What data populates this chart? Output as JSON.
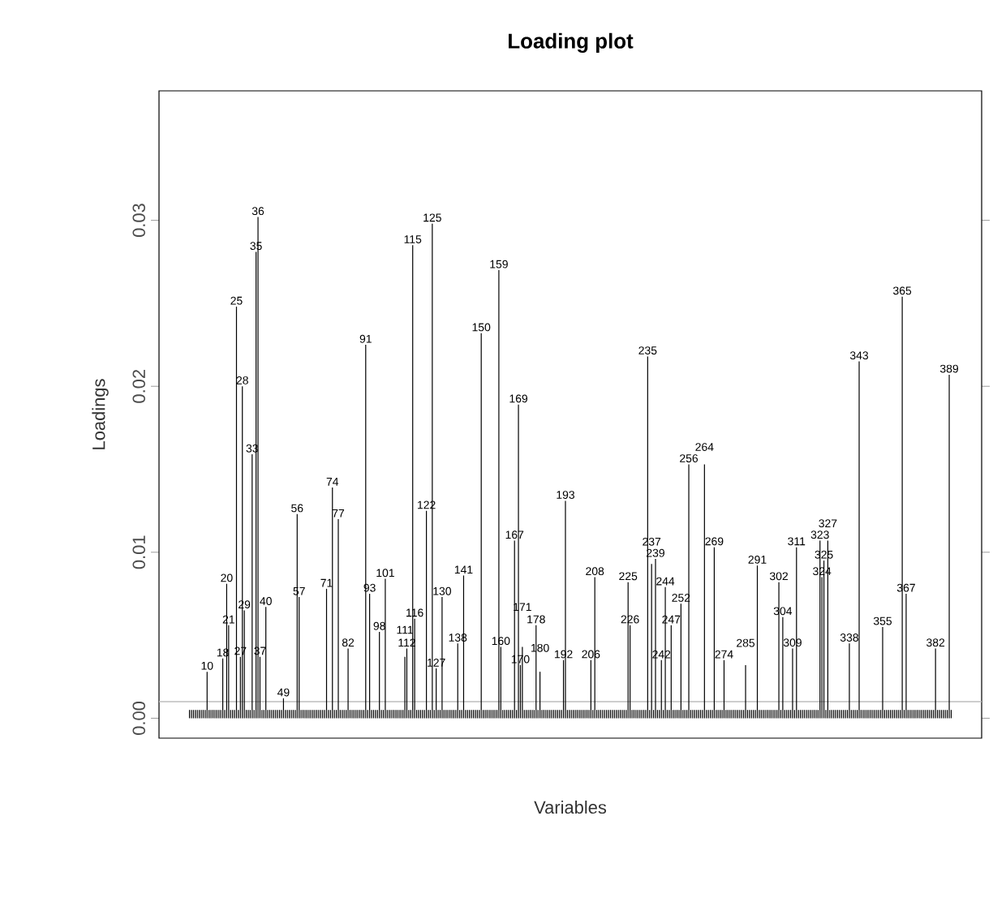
{
  "chart_data": {
    "type": "bar",
    "title": "Loading plot",
    "xlabel": "Variables",
    "ylabel": "Loadings",
    "ylim": [
      -0.0012,
      0.0378
    ],
    "yticks": [
      {
        "value": 0,
        "label": "0.00"
      },
      {
        "value": 0.01,
        "label": "0.01"
      },
      {
        "value": 0.02,
        "label": "0.02"
      },
      {
        "value": 0.03,
        "label": "0.03"
      }
    ],
    "tick_labels": "y",
    "categories": [
      null,
      null,
      null,
      null,
      null,
      null,
      null,
      null,
      null,
      "10",
      null,
      null,
      null,
      null,
      null,
      null,
      null,
      "18",
      null,
      "20",
      "21",
      null,
      null,
      null,
      "25",
      null,
      "27",
      "28",
      "29",
      null,
      null,
      null,
      "33",
      null,
      "35",
      "36",
      "37",
      null,
      null,
      "40",
      null,
      null,
      null,
      null,
      null,
      null,
      null,
      null,
      "49",
      null,
      null,
      null,
      null,
      null,
      null,
      "56",
      "57",
      null,
      null,
      null,
      null,
      null,
      null,
      null,
      null,
      null,
      null,
      null,
      null,
      null,
      "71",
      null,
      null,
      "74",
      null,
      null,
      "77",
      null,
      null,
      null,
      null,
      "82",
      null,
      null,
      null,
      null,
      null,
      null,
      null,
      null,
      "91",
      null,
      "93",
      null,
      null,
      null,
      null,
      "98",
      null,
      null,
      "101",
      null,
      null,
      null,
      null,
      null,
      null,
      null,
      null,
      null,
      "111",
      "112",
      null,
      null,
      "115",
      "116",
      null,
      null,
      null,
      null,
      null,
      "122",
      null,
      null,
      "125",
      null,
      "127",
      null,
      null,
      "130",
      null,
      null,
      null,
      null,
      null,
      null,
      null,
      "138",
      null,
      null,
      "141",
      null,
      null,
      null,
      null,
      null,
      null,
      null,
      null,
      "150",
      null,
      null,
      null,
      null,
      null,
      null,
      null,
      null,
      "159",
      "160",
      null,
      null,
      null,
      null,
      null,
      null,
      "167",
      null,
      "169",
      "170",
      "171",
      null,
      null,
      null,
      null,
      null,
      null,
      "178",
      null,
      "180",
      null,
      null,
      null,
      null,
      null,
      null,
      null,
      null,
      null,
      null,
      null,
      "192",
      "193",
      null,
      null,
      null,
      null,
      null,
      null,
      null,
      null,
      null,
      null,
      null,
      null,
      "206",
      null,
      "208",
      null,
      null,
      null,
      null,
      null,
      null,
      null,
      null,
      null,
      null,
      null,
      null,
      null,
      null,
      null,
      null,
      "225",
      "226",
      null,
      null,
      null,
      null,
      null,
      null,
      null,
      null,
      "235",
      null,
      "237",
      null,
      "239",
      null,
      null,
      "242",
      null,
      "244",
      null,
      null,
      "247",
      null,
      null,
      null,
      null,
      "252",
      null,
      null,
      null,
      "256",
      null,
      null,
      null,
      null,
      null,
      null,
      null,
      "264",
      null,
      null,
      null,
      null,
      "269",
      null,
      null,
      null,
      null,
      "274",
      null,
      null,
      null,
      null,
      null,
      null,
      null,
      null,
      null,
      null,
      "285",
      null,
      null,
      null,
      null,
      null,
      "291",
      null,
      null,
      null,
      null,
      null,
      null,
      null,
      null,
      null,
      null,
      "302",
      null,
      "304",
      null,
      null,
      null,
      null,
      "309",
      null,
      "311",
      null,
      null,
      null,
      null,
      null,
      null,
      null,
      null,
      null,
      null,
      null,
      "323",
      "324",
      "325",
      null,
      "327",
      null,
      null,
      null,
      null,
      null,
      null,
      null,
      null,
      null,
      null,
      "338",
      null,
      null,
      null,
      null,
      "343",
      null,
      null,
      null,
      null,
      null,
      null,
      null,
      null,
      null,
      null,
      null,
      "355",
      null,
      null,
      null,
      null,
      null,
      null,
      null,
      null,
      null,
      "365",
      null,
      "367",
      null,
      null,
      null,
      null,
      null,
      null,
      null,
      null,
      null,
      null,
      null,
      null,
      null,
      null,
      "382",
      null,
      null,
      null,
      null,
      null,
      null,
      "389",
      null
    ],
    "series": [
      {
        "color": "#000000",
        "values": [
          0.0005,
          0.0005,
          0.0005,
          0.0005,
          0.0005,
          0.0005,
          0.0005,
          0.0005,
          0.0005,
          0.0028,
          0.0005,
          0.0005,
          0.0005,
          0.0005,
          0.0005,
          0.0005,
          0.0005,
          0.0036,
          0.0005,
          0.0081,
          0.0056,
          0.0005,
          0.0005,
          0.0005,
          0.0248,
          0.0005,
          0.0037,
          0.02,
          0.0065,
          0.0005,
          0.0005,
          0.0005,
          0.0159,
          0.0005,
          0.0281,
          0.0302,
          0.0037,
          0.0005,
          0.0005,
          0.0067,
          0.0005,
          0.0005,
          0.0005,
          0.0005,
          0.0005,
          0.0005,
          0.0005,
          0.0005,
          0.0012,
          0.0005,
          0.0005,
          0.0005,
          0.0005,
          0.0005,
          0.0005,
          0.0123,
          0.0073,
          0.0005,
          0.0005,
          0.0005,
          0.0005,
          0.0005,
          0.0005,
          0.0005,
          0.0005,
          0.0005,
          0.0005,
          0.0005,
          0.0005,
          0.0005,
          0.0078,
          0.0005,
          0.0005,
          0.0139,
          0.0005,
          0.0005,
          0.012,
          0.0005,
          0.0005,
          0.0005,
          0.0005,
          0.0042,
          0.0005,
          0.0005,
          0.0005,
          0.0005,
          0.0005,
          0.0005,
          0.0005,
          0.0005,
          0.0225,
          0.0005,
          0.0075,
          0.0005,
          0.0005,
          0.0005,
          0.0005,
          0.0052,
          0.0005,
          0.0005,
          0.0084,
          0.0005,
          0.0005,
          0.0005,
          0.0005,
          0.0005,
          0.0005,
          0.0005,
          0.0005,
          0.0005,
          0.0037,
          0.0042,
          0.0005,
          0.0005,
          0.0285,
          0.006,
          0.0005,
          0.0005,
          0.0005,
          0.0005,
          0.0005,
          0.0125,
          0.0005,
          0.0005,
          0.0298,
          0.0005,
          0.003,
          0.0005,
          0.0005,
          0.0073,
          0.0005,
          0.0005,
          0.0005,
          0.0005,
          0.0005,
          0.0005,
          0.0005,
          0.0045,
          0.0005,
          0.0005,
          0.0086,
          0.0005,
          0.0005,
          0.0005,
          0.0005,
          0.0005,
          0.0005,
          0.0005,
          0.0005,
          0.0232,
          0.0005,
          0.0005,
          0.0005,
          0.0005,
          0.0005,
          0.0005,
          0.0005,
          0.0005,
          0.027,
          0.0043,
          0.0005,
          0.0005,
          0.0005,
          0.0005,
          0.0005,
          0.0005,
          0.0107,
          0.0005,
          0.0189,
          0.0032,
          0.0043,
          0.0005,
          0.0005,
          0.0005,
          0.0005,
          0.0005,
          0.0005,
          0.0056,
          0.0005,
          0.0028,
          0.0005,
          0.0005,
          0.0005,
          0.0005,
          0.0005,
          0.0005,
          0.0005,
          0.0005,
          0.0005,
          0.0005,
          0.0005,
          0.0035,
          0.0131,
          0.0005,
          0.0005,
          0.0005,
          0.0005,
          0.0005,
          0.0005,
          0.0005,
          0.0005,
          0.0005,
          0.0005,
          0.0005,
          0.0005,
          0.0035,
          0.0005,
          0.0085,
          0.0005,
          0.0005,
          0.0005,
          0.0005,
          0.0005,
          0.0005,
          0.0005,
          0.0005,
          0.0005,
          0.0005,
          0.0005,
          0.0005,
          0.0005,
          0.0005,
          0.0005,
          0.0005,
          0.0082,
          0.0056,
          0.0005,
          0.0005,
          0.0005,
          0.0005,
          0.0005,
          0.0005,
          0.0005,
          0.0005,
          0.0218,
          0.0005,
          0.0093,
          0.0005,
          0.0096,
          0.0005,
          0.0005,
          0.0035,
          0.0005,
          0.0079,
          0.0005,
          0.0005,
          0.0056,
          0.0005,
          0.0005,
          0.0005,
          0.0005,
          0.0069,
          0.0005,
          0.0005,
          0.0005,
          0.0153,
          0.0005,
          0.0005,
          0.0005,
          0.0005,
          0.0005,
          0.0005,
          0.0005,
          0.0153,
          0.0005,
          0.0005,
          0.0005,
          0.0005,
          0.0103,
          0.0005,
          0.0005,
          0.0005,
          0.0005,
          0.0035,
          0.0005,
          0.0005,
          0.0005,
          0.0005,
          0.0005,
          0.0005,
          0.0005,
          0.0005,
          0.0005,
          0.0005,
          0.0032,
          0.0005,
          0.0005,
          0.0005,
          0.0005,
          0.0005,
          0.0092,
          0.0005,
          0.0005,
          0.0005,
          0.0005,
          0.0005,
          0.0005,
          0.0005,
          0.0005,
          0.0005,
          0.0005,
          0.0082,
          0.0005,
          0.0061,
          0.0005,
          0.0005,
          0.0005,
          0.0005,
          0.0042,
          0.0005,
          0.0103,
          0.0005,
          0.0005,
          0.0005,
          0.0005,
          0.0005,
          0.0005,
          0.0005,
          0.0005,
          0.0005,
          0.0005,
          0.0005,
          0.0107,
          0.0085,
          0.0095,
          0.0005,
          0.0107,
          0.0005,
          0.0005,
          0.0005,
          0.0005,
          0.0005,
          0.0005,
          0.0005,
          0.0005,
          0.0005,
          0.0005,
          0.0045,
          0.0005,
          0.0005,
          0.0005,
          0.0005,
          0.0215,
          0.0005,
          0.0005,
          0.0005,
          0.0005,
          0.0005,
          0.0005,
          0.0005,
          0.0005,
          0.0005,
          0.0005,
          0.0005,
          0.0055,
          0.0005,
          0.0005,
          0.0005,
          0.0005,
          0.0005,
          0.0005,
          0.0005,
          0.0005,
          0.0005,
          0.0254,
          0.0005,
          0.0075,
          0.0005,
          0.0005,
          0.0005,
          0.0005,
          0.0005,
          0.0005,
          0.0005,
          0.0005,
          0.0005,
          0.0005,
          0.0005,
          0.0005,
          0.0005,
          0.0005,
          0.0042,
          0.0005,
          0.0005,
          0.0005,
          0.0005,
          0.0005,
          0.0005,
          0.0207,
          0.0005
        ]
      }
    ],
    "ref_lines": [
      {
        "axis": "y",
        "value": 0.001,
        "color": "#bebebe"
      }
    ]
  }
}
